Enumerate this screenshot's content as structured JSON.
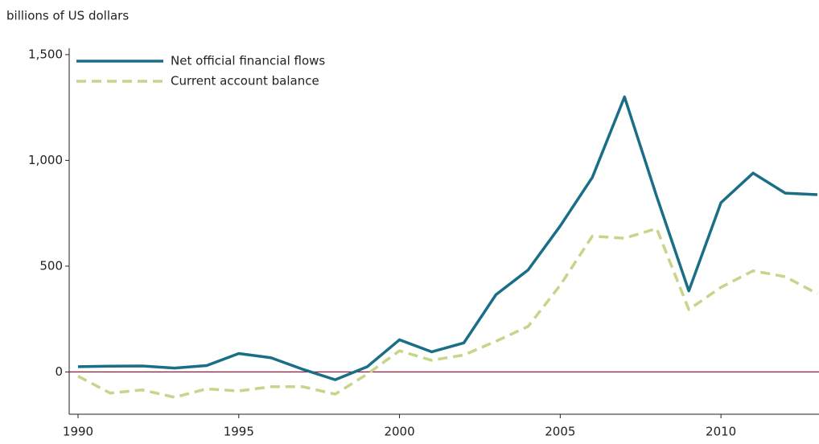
{
  "chart_data": {
    "type": "line",
    "y_axis_label": "billions of US dollars",
    "x": [
      1990,
      1991,
      1992,
      1993,
      1994,
      1995,
      1996,
      1997,
      1998,
      1999,
      2000,
      2001,
      2002,
      2003,
      2004,
      2005,
      2006,
      2007,
      2008,
      2009,
      2010,
      2011,
      2012,
      2013
    ],
    "series": [
      {
        "name": "Net official financial flows",
        "color": "#1a6e85",
        "dashed": false,
        "values": [
          25,
          27,
          28,
          18,
          30,
          87,
          67,
          12,
          -37,
          25,
          152,
          95,
          137,
          365,
          482,
          690,
          920,
          1300,
          830,
          383,
          800,
          940,
          845,
          838
        ]
      },
      {
        "name": "Current account balance",
        "color": "#c8d48a",
        "dashed": true,
        "values": [
          -20,
          -100,
          -85,
          -120,
          -80,
          -90,
          -70,
          -70,
          -105,
          -10,
          100,
          55,
          80,
          145,
          215,
          410,
          642,
          632,
          678,
          295,
          400,
          478,
          450,
          370
        ]
      }
    ],
    "xlim": [
      1990,
      2013
    ],
    "xticks": [
      1990,
      1995,
      2000,
      2005,
      2010
    ],
    "ylim": [
      -200,
      1530
    ],
    "yticks": [
      0,
      500,
      {
        "value": 1000,
        "label": "1,000"
      },
      {
        "value": 1500,
        "label": "1,500"
      }
    ],
    "zero_line_color": "#a0173b",
    "legend": "top-left"
  }
}
